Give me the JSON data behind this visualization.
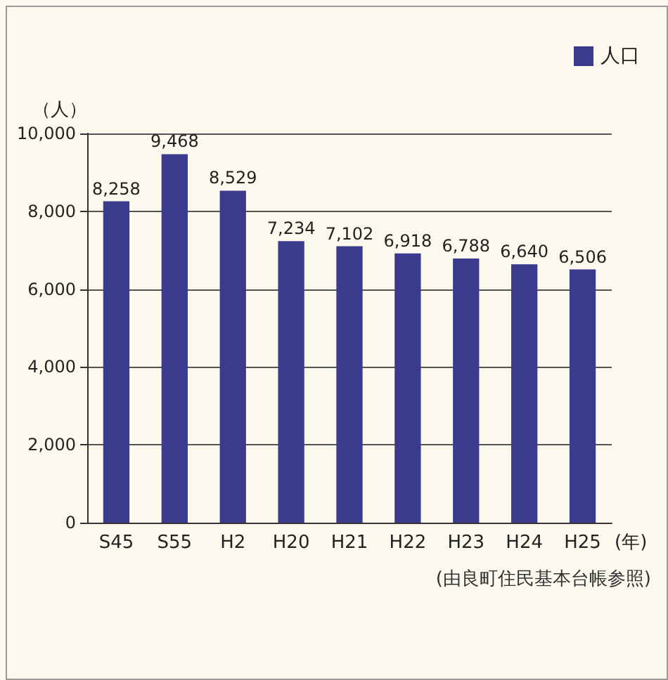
{
  "chart_data": {
    "type": "bar",
    "ylabel": "（人）",
    "xlabel": "(年)",
    "annotations": [
      "(由良町住民基本台帳参照)"
    ],
    "categories": [
      "S45",
      "S55",
      "H2",
      "H20",
      "H21",
      "H22",
      "H23",
      "H24",
      "H25"
    ],
    "series": [
      {
        "name": "人口",
        "color": "#3b3b8e",
        "values": [
          8258,
          9468,
          8529,
          7234,
          7102,
          6918,
          6788,
          6640,
          6506
        ],
        "value_labels": [
          "8,258",
          "9,468",
          "8,529",
          "7,234",
          "7,102",
          "6,918",
          "6,788",
          "6,640",
          "6,506"
        ]
      }
    ],
    "ylim": [
      0,
      10000
    ],
    "yticks": [
      0,
      {
        "value": 2000,
        "label": "2,000"
      },
      {
        "value": 4000,
        "label": "4,000"
      },
      {
        "value": 6000,
        "label": "6,000"
      },
      {
        "value": 8000,
        "label": "8,000"
      },
      {
        "value": 10000,
        "label": "10,000"
      }
    ],
    "grid": "y",
    "legend": "top right"
  }
}
